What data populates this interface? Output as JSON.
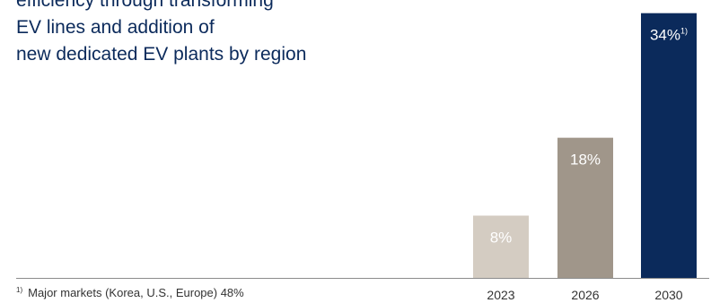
{
  "headline": {
    "lines": [
      "efficiency through transforming",
      "EV lines and addition of",
      "new dedicated EV plants by region"
    ]
  },
  "chart_data": {
    "type": "bar",
    "categories": [
      "2023",
      "2026",
      "2030"
    ],
    "values": [
      8,
      18,
      34
    ],
    "value_labels": [
      "8%",
      "18%",
      "34%"
    ],
    "footnote_marker": "1)",
    "ylim": [
      0,
      35
    ],
    "grid": false,
    "colors": [
      "#d4ccc2",
      "#a0968a",
      "#0b2a5b"
    ]
  },
  "footnote": {
    "marker": "1)",
    "text": "Major markets (Korea, U.S., Europe) 48%"
  }
}
